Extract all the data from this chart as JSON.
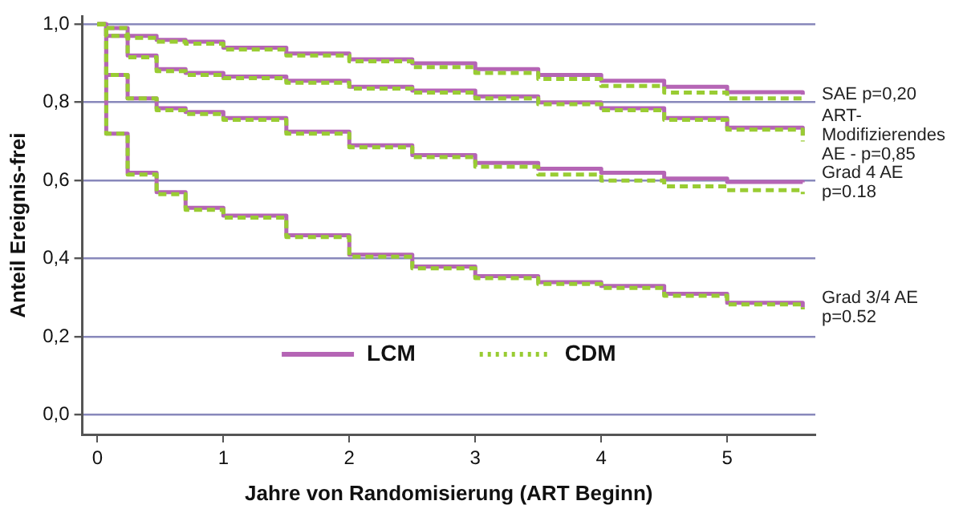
{
  "chart_data": {
    "type": "step",
    "xlabel": "Jahre von Randomisierung (ART Beginn)",
    "ylabel": "Anteil Ereignis-frei",
    "x": [
      0,
      0.07,
      0.24,
      0.47,
      0.7,
      1,
      1.5,
      2,
      2.5,
      3,
      3.5,
      4,
      4.5,
      5,
      5.6
    ],
    "series": [
      {
        "name": "LCM",
        "color": "#b565b5",
        "line_style": "solid",
        "values": [
          1,
          0.99,
          0.97,
          0.96,
          0.955,
          0.94,
          0.925,
          0.91,
          0.9,
          0.885,
          0.87,
          0.855,
          0.84,
          0.826,
          0.82
        ]
      },
      {
        "name": "CDM",
        "color": "#99cc33",
        "line_style": "dashed",
        "values": [
          1,
          0.99,
          0.965,
          0.955,
          0.95,
          0.935,
          0.92,
          0.905,
          0.89,
          0.875,
          0.86,
          0.842,
          0.825,
          0.81,
          0.805
        ]
      },
      {
        "color": "#b565b5",
        "line_style": "solid",
        "values": [
          1,
          0.97,
          0.92,
          0.885,
          0.875,
          0.866,
          0.855,
          0.84,
          0.83,
          0.815,
          0.8,
          0.785,
          0.76,
          0.735,
          0.715
        ]
      },
      {
        "color": "#99cc33",
        "line_style": "dashed",
        "values": [
          1,
          0.97,
          0.915,
          0.88,
          0.87,
          0.862,
          0.85,
          0.835,
          0.825,
          0.81,
          0.795,
          0.78,
          0.755,
          0.73,
          0.7
        ]
      },
      {
        "color": "#b565b5",
        "line_style": "solid",
        "values": [
          1,
          0.87,
          0.81,
          0.785,
          0.775,
          0.76,
          0.725,
          0.69,
          0.665,
          0.645,
          0.63,
          0.62,
          0.605,
          0.596,
          0.595
        ]
      },
      {
        "color": "#99cc33",
        "line_style": "dashed",
        "values": [
          1,
          0.87,
          0.81,
          0.78,
          0.77,
          0.755,
          0.72,
          0.685,
          0.66,
          0.635,
          0.615,
          0.6,
          0.585,
          0.575,
          0.565
        ]
      },
      {
        "color": "#b565b5",
        "line_style": "solid",
        "values": [
          1,
          0.72,
          0.62,
          0.57,
          0.53,
          0.51,
          0.46,
          0.41,
          0.38,
          0.355,
          0.34,
          0.33,
          0.31,
          0.287,
          0.275
        ]
      },
      {
        "color": "#99cc33",
        "line_style": "dashed",
        "values": [
          1,
          0.72,
          0.615,
          0.565,
          0.525,
          0.505,
          0.455,
          0.405,
          0.375,
          0.35,
          0.335,
          0.325,
          0.305,
          0.283,
          0.27
        ]
      }
    ],
    "xlim": [
      -0.12,
      5.7
    ],
    "xticks": [
      0,
      1,
      2,
      3,
      4,
      5
    ],
    "ylim": [
      -0.05,
      1.02
    ],
    "yticks": [
      {
        "value": 0,
        "label": "0,0"
      },
      {
        "value": 0.2,
        "label": "0,2"
      },
      {
        "value": 0.4,
        "label": "0,4"
      },
      {
        "value": 0.6,
        "label": "0,6"
      },
      {
        "value": 0.8,
        "label": "0,8"
      },
      {
        "value": 1,
        "label": "1,0"
      }
    ],
    "grid": "y",
    "legend": "bottom",
    "marker": "none",
    "annotations": [
      "SAE p=0,20",
      "ART-\nModifizierendes\nAE - p=0,85",
      "Grad 4 AE\np=0.18",
      "Grad 3/4 AE\np=0.52"
    ]
  }
}
